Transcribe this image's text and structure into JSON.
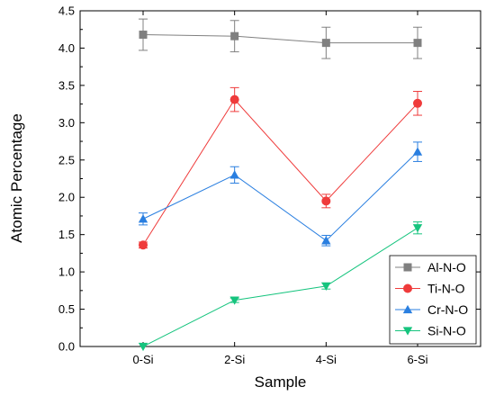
{
  "chart_data": {
    "type": "line",
    "title": "",
    "xlabel": "Sample",
    "ylabel": "Atomic Percentage",
    "categories": [
      "0-Si",
      "2-Si",
      "4-Si",
      "6-Si"
    ],
    "ylim": [
      0,
      4.5
    ],
    "yticks": [
      "0.0",
      "0.5",
      "1.0",
      "1.5",
      "2.0",
      "2.5",
      "3.0",
      "3.5",
      "4.0",
      "4.5"
    ],
    "grid": false,
    "legend_position": "bottom-right",
    "series": [
      {
        "name": "Al-N-O",
        "marker": "square",
        "color": "#808080",
        "values": [
          4.18,
          4.16,
          4.07,
          4.07
        ],
        "errors": [
          0.21,
          0.21,
          0.21,
          0.21
        ]
      },
      {
        "name": "Ti-N-O",
        "marker": "circle",
        "color": "#ef3b3b",
        "values": [
          1.36,
          3.31,
          1.95,
          3.26
        ],
        "errors": [
          0.04,
          0.16,
          0.09,
          0.16
        ]
      },
      {
        "name": "Cr-N-O",
        "marker": "triangle-up",
        "color": "#2a7fe0",
        "values": [
          1.71,
          2.3,
          1.42,
          2.61
        ],
        "errors": [
          0.08,
          0.11,
          0.07,
          0.13
        ]
      },
      {
        "name": "Si-N-O",
        "marker": "triangle-down",
        "color": "#16c47e",
        "values": [
          0.0,
          0.62,
          0.81,
          1.59
        ],
        "errors": [
          0.0,
          0.03,
          0.04,
          0.08
        ]
      }
    ]
  }
}
